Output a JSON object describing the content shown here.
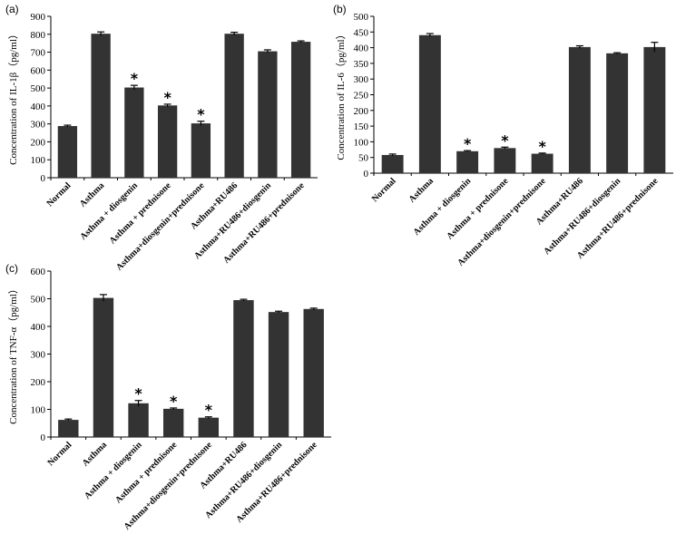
{
  "chart_data": [
    {
      "id": "a",
      "type": "bar",
      "panel_label": "(a)",
      "ylabel": "Concentration of IL-1β（pg/ml）",
      "ylim": [
        0,
        900
      ],
      "ytick_step": 100,
      "categories": [
        "Normal",
        "Asthma",
        "Asthma + diosgenin",
        "Asthma + prednisone",
        "Asthma+diosgenin+prednisone",
        "Asthma+RU486",
        "Asthma+RU486+diosgenin",
        "Asthma+RU486+prednisone"
      ],
      "values": [
        288,
        803,
        503,
        403,
        303,
        803,
        705,
        758
      ],
      "errors": [
        5,
        10,
        12,
        7,
        12,
        8,
        8,
        5
      ],
      "significant": [
        false,
        false,
        true,
        true,
        true,
        false,
        false,
        false
      ],
      "marker": "*",
      "bar_color": "#333333"
    },
    {
      "id": "b",
      "type": "bar",
      "panel_label": "(b)",
      "ylabel": "Concentration of IL-6（pg/ml）",
      "ylim": [
        0,
        500
      ],
      "ytick_step": 50,
      "categories": [
        "Normal",
        "Asthma",
        "Asthma + diosgenin",
        "Asthma + prednisone",
        "Asthma+diosgenin+prednisone",
        "Asthma+RU486",
        "Asthma+RU486+diosgenin",
        "Asthma+RU486+prednisone"
      ],
      "values": [
        58,
        440,
        70,
        80,
        62,
        402,
        382,
        402
      ],
      "errors": [
        3,
        5,
        2,
        3,
        2,
        4,
        2,
        15
      ],
      "significant": [
        false,
        false,
        true,
        true,
        true,
        false,
        false,
        false
      ],
      "marker": "*",
      "bar_color": "#333333"
    },
    {
      "id": "c",
      "type": "bar",
      "panel_label": "(c)",
      "ylabel": "Concentration of TNF-α（pg/ml）",
      "ylim": [
        0,
        600
      ],
      "ytick_step": 100,
      "categories": [
        "Normal",
        "Asthma",
        "Asthma + diosgenin",
        "Asthma + prednisone",
        "Asthma+diosgenin+prednisone",
        "Asthma+RU486",
        "Asthma+RU486+diosgenin",
        "Asthma+RU486+prednisone"
      ],
      "values": [
        62,
        503,
        122,
        102,
        70,
        495,
        452,
        463
      ],
      "errors": [
        3,
        12,
        10,
        3,
        3,
        3,
        3,
        3
      ],
      "significant": [
        false,
        false,
        true,
        true,
        true,
        false,
        false,
        false
      ],
      "marker": "*",
      "bar_color": "#333333"
    }
  ]
}
